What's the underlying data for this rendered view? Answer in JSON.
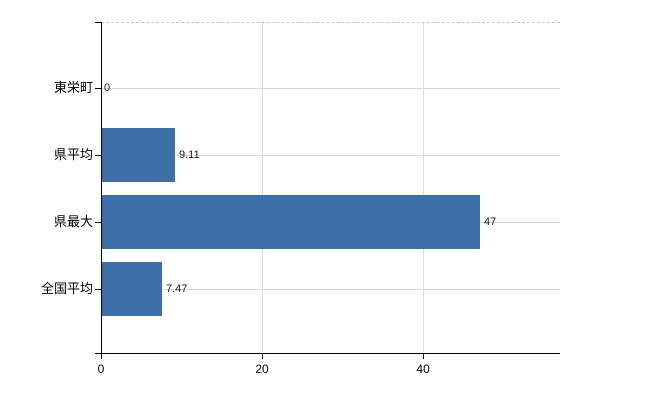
{
  "chart_data": {
    "type": "bar",
    "orientation": "horizontal",
    "title": "",
    "xlabel": "",
    "ylabel": "",
    "categories": [
      "東栄町",
      "県平均",
      "県最大",
      "全国平均"
    ],
    "values": [
      0,
      9.11,
      47,
      7.47
    ],
    "value_labels": [
      "0",
      "9.11",
      "47",
      "7.47"
    ],
    "x_ticks": [
      0,
      20,
      40
    ],
    "x_tick_labels": [
      "0",
      "20",
      "40"
    ],
    "xlim": [
      0,
      57
    ],
    "grid": true,
    "legend": "none",
    "colors": {
      "bar": "#3e6fa8",
      "row_gridline": "#d5ddd0",
      "vertical_gridline": "#dedede",
      "top_border_dashed": "#c8c8c8",
      "axis": "#000000",
      "text": "#000000",
      "background": "#ffffff"
    }
  }
}
